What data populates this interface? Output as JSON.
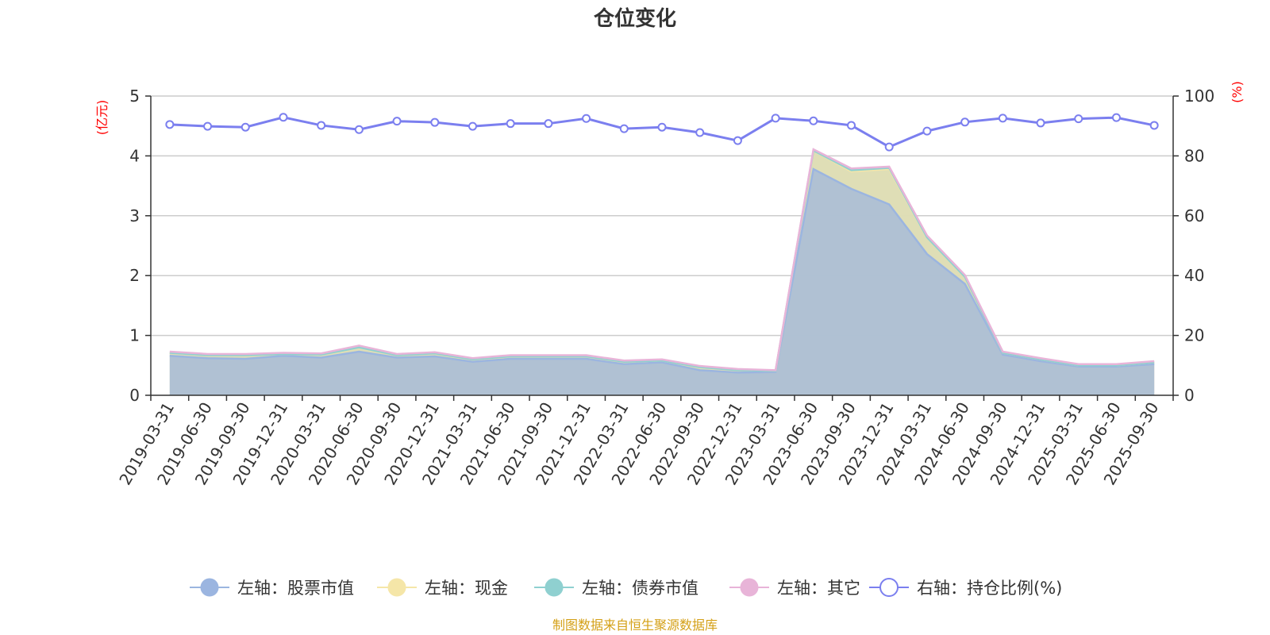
{
  "chart_data": {
    "type": "area",
    "title": "仓位变化",
    "y_left_unit": "(亿元)",
    "y_right_unit": "(%)",
    "ylim_left": [
      0,
      5
    ],
    "ylim_right": [
      0,
      100
    ],
    "y_left_ticks": [
      "0",
      "1",
      "2",
      "3",
      "4",
      "5"
    ],
    "y_right_ticks": [
      "0",
      "20",
      "40",
      "60",
      "80",
      "100"
    ],
    "categories": [
      "2019-03-31",
      "2019-06-30",
      "2019-09-30",
      "2019-12-31",
      "2020-03-31",
      "2020-06-30",
      "2020-09-30",
      "2020-12-31",
      "2021-03-31",
      "2021-06-30",
      "2021-09-30",
      "2021-12-31",
      "2022-03-31",
      "2022-06-30",
      "2022-09-30",
      "2022-12-31",
      "2023-03-31",
      "2023-06-30",
      "2023-09-30",
      "2023-12-31",
      "2024-03-31",
      "2024-06-30",
      "2024-09-30",
      "2024-12-31",
      "2025-03-31",
      "2025-06-30",
      "2025-09-30"
    ],
    "stacked": true,
    "grid": true,
    "legend_position": "bottom",
    "series": [
      {
        "name": "左轴：股票市值",
        "axis": "left",
        "color": "#9bb5e0",
        "values": [
          0.66,
          0.62,
          0.61,
          0.66,
          0.63,
          0.73,
          0.63,
          0.65,
          0.56,
          0.61,
          0.61,
          0.61,
          0.52,
          0.55,
          0.42,
          0.38,
          0.39,
          3.78,
          3.45,
          3.19,
          2.36,
          1.86,
          0.68,
          0.57,
          0.48,
          0.48,
          0.52
        ]
      },
      {
        "name": "左轴：现金",
        "axis": "left",
        "color": "#f5e6a8",
        "values": [
          0.05,
          0.05,
          0.06,
          0.03,
          0.05,
          0.07,
          0.04,
          0.05,
          0.04,
          0.04,
          0.04,
          0.04,
          0.04,
          0.03,
          0.05,
          0.04,
          0.02,
          0.31,
          0.29,
          0.59,
          0.28,
          0.12,
          0.03,
          0.03,
          0.02,
          0.02,
          0.03
        ]
      },
      {
        "name": "左轴：债券市值",
        "axis": "left",
        "color": "#8fd0d0",
        "values": [
          0,
          0,
          0,
          0,
          0,
          0,
          0,
          0,
          0,
          0,
          0,
          0,
          0,
          0,
          0,
          0,
          0,
          0,
          0.02,
          0.02,
          0,
          0,
          0,
          0,
          0,
          0,
          0
        ]
      },
      {
        "name": "左轴：其它",
        "axis": "left",
        "color": "#e8b4d8",
        "values": [
          0.02,
          0.02,
          0.02,
          0.02,
          0.02,
          0.03,
          0.02,
          0.02,
          0.02,
          0.02,
          0.02,
          0.02,
          0.02,
          0.02,
          0.02,
          0.02,
          0.01,
          0.02,
          0.03,
          0.02,
          0.03,
          0.03,
          0.02,
          0.02,
          0.02,
          0.02,
          0.02
        ]
      },
      {
        "name": "右轴：持仓比例(%)",
        "axis": "right",
        "type": "line",
        "color": "#7b7fef",
        "values": [
          90.5,
          89.9,
          89.6,
          92.9,
          90.2,
          88.8,
          91.6,
          91.2,
          89.9,
          90.8,
          90.8,
          92.5,
          89.1,
          89.6,
          87.8,
          85.1,
          92.6,
          91.7,
          90.2,
          83.0,
          88.3,
          91.3,
          92.6,
          91.0,
          92.4,
          92.8,
          90.2
        ]
      }
    ],
    "source": "制图数据来自恒生聚源数据库"
  }
}
